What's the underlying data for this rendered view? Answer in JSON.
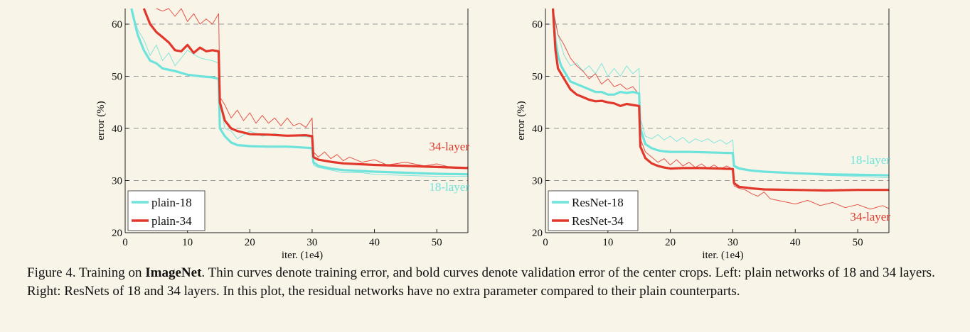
{
  "colors": {
    "cyan": "#6ee3dc",
    "red": "#e2372b",
    "background": "#f8f4e8"
  },
  "caption": {
    "prefix": "Figure 4. Training on ",
    "bold": "ImageNet",
    "rest": ". Thin curves denote training error, and bold curves denote validation error of the center crops. Left: plain networks of 18 and 34 layers. Right: ResNets of 18 and 34 layers. In this plot, the residual networks have no extra parameter compared to their plain counterparts."
  },
  "chart_data": [
    {
      "type": "line",
      "xlabel": "iter. (1e4)",
      "ylabel": "error (%)",
      "xlim": [
        0,
        55
      ],
      "ylim": [
        20,
        63
      ],
      "xticks": [
        0,
        10,
        20,
        30,
        40,
        50
      ],
      "yticks": [
        20,
        30,
        40,
        50,
        60
      ],
      "grid": "dashed horizontal at y ticks",
      "legend_position": "bottom-left",
      "legend": [
        "plain-18",
        "plain-34"
      ],
      "annotations": [
        {
          "text": "34-layer",
          "x": 52,
          "y": 35.8,
          "color": "red"
        },
        {
          "text": "18-layer",
          "x": 52,
          "y": 28.0,
          "color": "cyan"
        }
      ],
      "series": [
        {
          "name": "plain-18",
          "style": "bold",
          "color": "cyan",
          "x": [
            1,
            2,
            3,
            4,
            5,
            6,
            8,
            10,
            12,
            14,
            15,
            15.2,
            16,
            17,
            18,
            20,
            23,
            26,
            29,
            30,
            30.2,
            31,
            33,
            35,
            40,
            45,
            50,
            55
          ],
          "y": [
            63,
            58,
            55,
            53,
            52.5,
            51.5,
            51,
            50.3,
            50,
            49.8,
            49.5,
            40,
            38.5,
            37.3,
            36.8,
            36.6,
            36.5,
            36.5,
            36.3,
            36.2,
            33.5,
            32.8,
            32.3,
            32,
            31.7,
            31.5,
            31.3,
            31.2
          ]
        },
        {
          "name": "plain-34",
          "style": "bold",
          "color": "red",
          "x": [
            3,
            4,
            5,
            6,
            7,
            8,
            9,
            10,
            11,
            12,
            13,
            14,
            15,
            15.2,
            16,
            17,
            18,
            20,
            23,
            26,
            29,
            30,
            30.2,
            31,
            33,
            35,
            40,
            45,
            50,
            55
          ],
          "y": [
            63,
            60,
            58.5,
            57.5,
            56.5,
            55,
            54.8,
            56,
            54.5,
            55.5,
            54.8,
            55,
            54.8,
            45,
            41.5,
            40,
            39.5,
            38.9,
            38.8,
            38.6,
            38.7,
            38.5,
            34.5,
            34,
            33.6,
            33.3,
            33,
            32.8,
            32.6,
            32.4
          ]
        },
        {
          "name": "plain-18 train",
          "style": "thin",
          "color": "cyan",
          "x": [
            1,
            2,
            3,
            4,
            5,
            6,
            7,
            8,
            10,
            12,
            14,
            15,
            15.2,
            16,
            17,
            18,
            20,
            22,
            24,
            26,
            28,
            30,
            30.2,
            31,
            33,
            35,
            38,
            40,
            45,
            50,
            55
          ],
          "y": [
            63,
            59,
            57,
            54,
            56,
            53,
            54.5,
            52,
            55,
            53.5,
            53,
            52.5,
            45,
            40,
            39.5,
            38,
            39.5,
            38.5,
            39,
            38.5,
            38.5,
            38.3,
            33,
            32.5,
            32,
            31.5,
            31.5,
            31.2,
            31,
            30.8,
            30.8
          ]
        },
        {
          "name": "plain-34 train",
          "style": "thin",
          "color": "red",
          "x": [
            5,
            6,
            7,
            8,
            9,
            10,
            11,
            12,
            13,
            14,
            15,
            15.2,
            16,
            17,
            18,
            19,
            20,
            21,
            22,
            23,
            24,
            25,
            26,
            27,
            28,
            29,
            30,
            30.2,
            31,
            32,
            33,
            34,
            35,
            36,
            38,
            40,
            42,
            45,
            48,
            50,
            52,
            55
          ],
          "y": [
            63,
            62.5,
            63,
            61.5,
            63,
            60.5,
            62,
            60,
            61,
            60,
            62,
            46,
            44.5,
            42,
            43.5,
            41.5,
            43,
            41,
            42.5,
            41,
            42,
            40.5,
            42,
            40.5,
            41,
            40.2,
            42,
            35.5,
            34.5,
            35.5,
            34.2,
            35,
            33.8,
            34.5,
            33.5,
            34,
            33,
            33.5,
            32.8,
            33.2,
            32.6,
            32.5
          ]
        }
      ]
    },
    {
      "type": "line",
      "xlabel": "iter. (1e4)",
      "ylabel": "error (%)",
      "xlim": [
        0,
        55
      ],
      "ylim": [
        20,
        63
      ],
      "xticks": [
        0,
        10,
        20,
        30,
        40,
        50
      ],
      "yticks": [
        20,
        30,
        40,
        50,
        60
      ],
      "grid": "dashed horizontal at y ticks",
      "legend_position": "bottom-left",
      "legend": [
        "ResNet-18",
        "ResNet-34"
      ],
      "annotations": [
        {
          "text": "18-layer",
          "x": 52,
          "y": 33.2,
          "color": "cyan"
        },
        {
          "text": "34-layer",
          "x": 52,
          "y": 22.3,
          "color": "red"
        }
      ],
      "series": [
        {
          "name": "ResNet-18",
          "style": "bold",
          "color": "cyan",
          "x": [
            1.2,
            1.6,
            2,
            2.5,
            3,
            4,
            5,
            6,
            7,
            8,
            9,
            10,
            11,
            12,
            13,
            14,
            15,
            15.2,
            16,
            17,
            18,
            19,
            20,
            23,
            26,
            29,
            30,
            30.2,
            31,
            33,
            35,
            40,
            45,
            50,
            55
          ],
          "y": [
            63,
            57,
            54,
            52,
            51,
            49,
            48.5,
            48,
            47.5,
            47,
            47,
            46.5,
            46.5,
            47,
            46.8,
            47,
            46.7,
            40,
            37,
            36.2,
            35.8,
            35.6,
            35.5,
            35.5,
            35.4,
            35.3,
            35.3,
            32.8,
            32.3,
            31.9,
            31.7,
            31.4,
            31.2,
            31.1,
            31
          ]
        },
        {
          "name": "ResNet-34",
          "style": "bold",
          "color": "red",
          "x": [
            1.2,
            1.6,
            2,
            2.5,
            3,
            4,
            5,
            6,
            7,
            8,
            9,
            10,
            11,
            12,
            13,
            14,
            15,
            15.2,
            16,
            17,
            18,
            19,
            20,
            22,
            25,
            28,
            30,
            30.2,
            31,
            33,
            35,
            40,
            45,
            50,
            55
          ],
          "y": [
            63,
            55,
            51.5,
            50.5,
            49.5,
            47.5,
            46.5,
            46,
            45.5,
            45.2,
            45.3,
            45,
            44.8,
            44.3,
            44.7,
            44.5,
            44.3,
            36.5,
            34.3,
            33.3,
            32.8,
            32.5,
            32.3,
            32.4,
            32.4,
            32.3,
            32.2,
            29.5,
            28.8,
            28.5,
            28.3,
            28.2,
            28.1,
            28.2,
            28.2
          ]
        },
        {
          "name": "ResNet-18 train",
          "style": "thin",
          "color": "cyan",
          "x": [
            1.2,
            2,
            3,
            4,
            5,
            6,
            7,
            8,
            9,
            10,
            11,
            12,
            13,
            14,
            15,
            15.2,
            16,
            17,
            18,
            19,
            20,
            21,
            22,
            23,
            24,
            25,
            26,
            27,
            28,
            29,
            30,
            30.2,
            31,
            33,
            35,
            40,
            45,
            50,
            55
          ],
          "y": [
            63,
            58,
            54,
            52,
            52.5,
            51,
            52,
            50.5,
            52.5,
            50,
            51.5,
            50,
            52,
            50.5,
            51.5,
            42,
            38.5,
            38,
            38.8,
            37.8,
            38.5,
            37.5,
            38.3,
            37.2,
            38,
            37.5,
            38,
            37.2,
            37.8,
            37,
            37.8,
            33,
            32.5,
            32,
            31.8,
            31.3,
            31,
            30.8,
            30.5
          ]
        },
        {
          "name": "ResNet-34 train",
          "style": "thin",
          "color": "red",
          "x": [
            1.2,
            2,
            3,
            4,
            5,
            6,
            7,
            8,
            9,
            10,
            11,
            12,
            13,
            14,
            15,
            15.2,
            16,
            17,
            18,
            19,
            20,
            21,
            22,
            23,
            24,
            25,
            26,
            27,
            28,
            29,
            30,
            30.2,
            31,
            32,
            33,
            34,
            35,
            36,
            38,
            40,
            42,
            44,
            46,
            48,
            50,
            52,
            54,
            55
          ],
          "y": [
            63,
            58,
            56,
            53.5,
            52,
            51,
            49.5,
            50.5,
            48.5,
            49.5,
            48,
            48.5,
            47.5,
            48,
            46.5,
            38,
            35.5,
            34.5,
            33.5,
            34.2,
            33,
            34,
            32.8,
            33.5,
            32.5,
            33.2,
            32.3,
            33,
            32.2,
            32.8,
            32.2,
            29,
            28.5,
            28.2,
            27.5,
            27,
            27.8,
            26.5,
            26,
            25.5,
            26.2,
            25.2,
            25.8,
            24.8,
            25.4,
            24.5,
            25.2,
            24.6
          ]
        }
      ]
    }
  ]
}
